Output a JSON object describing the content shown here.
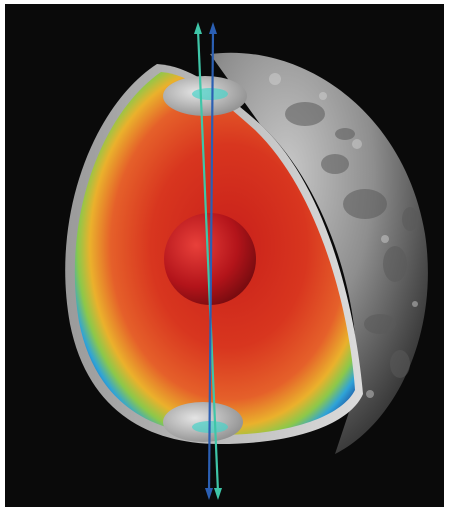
{
  "image": {
    "subject": "cutaway-moon-interior",
    "background_color": "#0a0a0a",
    "border_color": "#ffffff"
  },
  "colors": {
    "surface_light": "#bdbdbd",
    "surface_dark": "#3a3a3a",
    "core": "#c0161c",
    "mantle_hot": "#d2331f",
    "mantle_mid": "#e8b62a",
    "mantle_cool": "#2f9fd6",
    "mantle_edge": "#1a4f9e",
    "axis_teal": "#3fc6a8",
    "axis_blue": "#2b5fb3"
  }
}
